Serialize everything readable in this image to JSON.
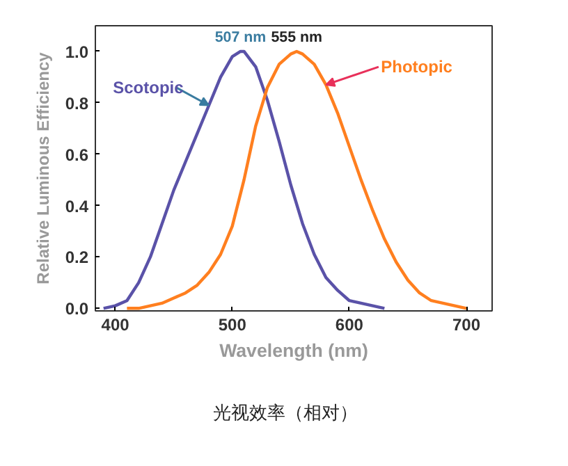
{
  "chart_data": {
    "type": "line",
    "title": "光视效率（相对）",
    "xlabel": "Wavelength (nm)",
    "ylabel": "Relative Luminous Efficiency",
    "xlim": [
      383,
      722
    ],
    "ylim": [
      -0.01,
      1.1
    ],
    "xticks": [
      400,
      500,
      600,
      700
    ],
    "yticks": [
      {
        "value": 0,
        "label": "0.0"
      },
      0.2,
      0.4,
      0.6,
      0.8,
      {
        "value": 1,
        "label": "1.0"
      }
    ],
    "grid": false,
    "legend": false,
    "marker": "none",
    "line_style": "solid",
    "series": [
      {
        "name": "Scotopic",
        "color": "#5a52a8",
        "x": [
          390,
          400,
          410,
          420,
          430,
          440,
          450,
          460,
          470,
          480,
          490,
          500,
          507,
          510,
          520,
          530,
          540,
          550,
          560,
          570,
          580,
          590,
          600,
          610,
          620,
          630
        ],
        "values": [
          0,
          0.01,
          0.03,
          0.1,
          0.2,
          0.33,
          0.46,
          0.57,
          0.68,
          0.79,
          0.9,
          0.98,
          1.0,
          1.0,
          0.94,
          0.81,
          0.65,
          0.48,
          0.33,
          0.21,
          0.12,
          0.07,
          0.03,
          0.02,
          0.01,
          0
        ]
      },
      {
        "name": "Photopic",
        "color": "#ff7f1f",
        "x": [
          410,
          420,
          430,
          440,
          450,
          460,
          470,
          480,
          490,
          500,
          510,
          520,
          530,
          540,
          550,
          555,
          560,
          570,
          580,
          590,
          600,
          610,
          620,
          630,
          640,
          650,
          660,
          670,
          680,
          690,
          700
        ],
        "values": [
          0,
          0,
          0.01,
          0.02,
          0.04,
          0.06,
          0.09,
          0.14,
          0.21,
          0.32,
          0.5,
          0.71,
          0.86,
          0.95,
          0.99,
          1.0,
          0.99,
          0.95,
          0.87,
          0.76,
          0.63,
          0.5,
          0.38,
          0.27,
          0.18,
          0.11,
          0.06,
          0.03,
          0.02,
          0.01,
          0
        ]
      }
    ],
    "annotations": [
      {
        "text": "507 nm",
        "x": 507,
        "y": 1.0
      },
      {
        "text": "555 nm",
        "x": 555,
        "y": 1.0
      }
    ]
  }
}
